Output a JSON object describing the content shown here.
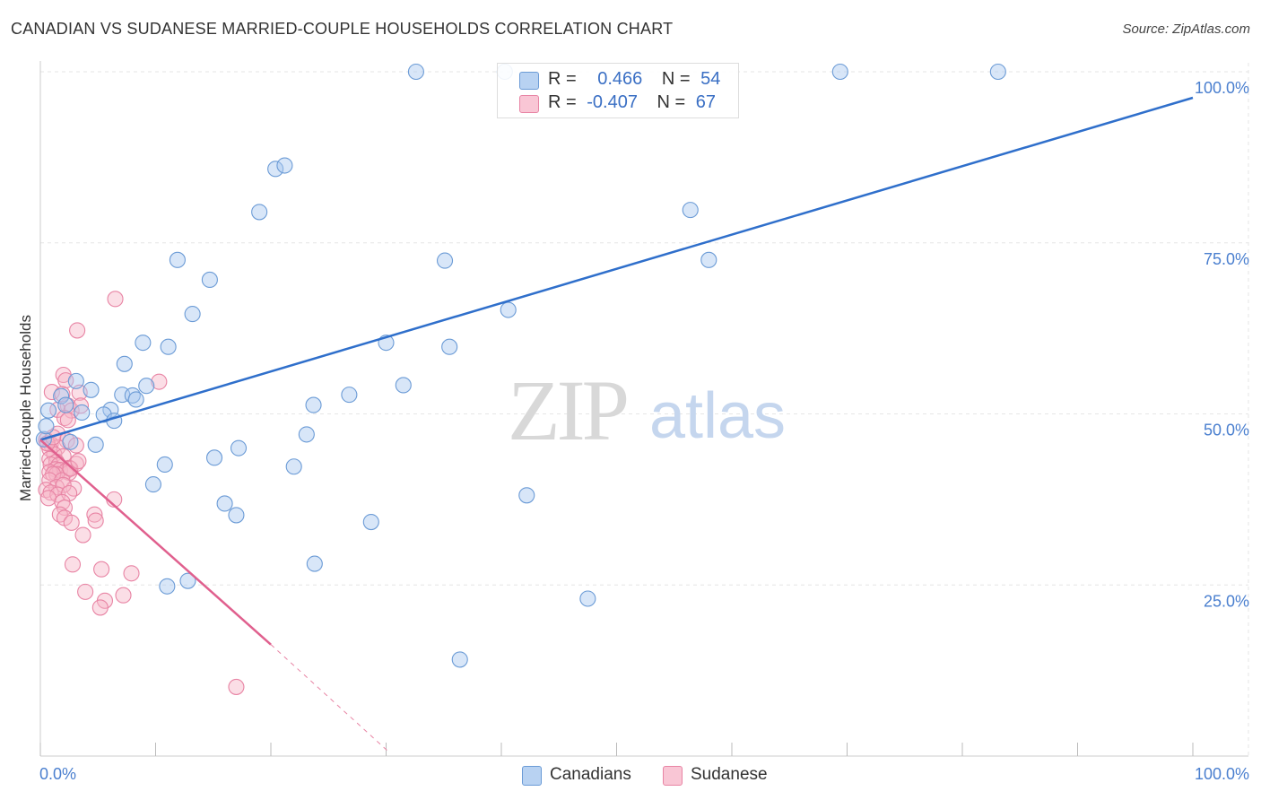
{
  "header": {
    "title": "CANADIAN VS SUDANESE MARRIED-COUPLE HOUSEHOLDS CORRELATION CHART",
    "source": "Source: ZipAtlas.com"
  },
  "watermark": {
    "zip": "ZIP",
    "atlas": "atlas"
  },
  "legend": {
    "canadians": {
      "r_label": "R =",
      "r_value": "0.466",
      "n_label": "N =",
      "n_value": "54"
    },
    "sudanese": {
      "r_label": "R =",
      "r_value": "-0.407",
      "n_label": "N =",
      "n_value": "67"
    }
  },
  "bottom_legend": {
    "canadians": "Canadians",
    "sudanese": "Sudanese"
  },
  "colors": {
    "canadians_fill": "#a9c8ef",
    "canadians_stroke": "#6b9bd6",
    "canadians_line": "#2f6fcb",
    "sudanese_fill": "#f7b6c8",
    "sudanese_stroke": "#e884a4",
    "sudanese_line": "#e0608e",
    "axis_label": "#4a7fcf",
    "grid": "#e6e6e6"
  },
  "chart_data": {
    "type": "scatter",
    "title": "CANADIAN VS SUDANESE MARRIED-COUPLE HOUSEHOLDS CORRELATION CHART",
    "xlabel": "",
    "ylabel": "Married-couple Households",
    "xlim": [
      0,
      100
    ],
    "ylim": [
      0,
      103
    ],
    "x_tick_labels": [
      "0.0%",
      "100.0%"
    ],
    "y_ticks": [
      25,
      50,
      75,
      100
    ],
    "y_tick_labels": [
      "25.0%",
      "50.0%",
      "75.0%",
      "100.0%"
    ],
    "series": [
      {
        "name": "Canadians",
        "R": 0.466,
        "N": 54,
        "trend": {
          "x": [
            0,
            100
          ],
          "y": [
            46.2,
            96.2
          ]
        },
        "points": [
          [
            32.6,
            100
          ],
          [
            40.3,
            100
          ],
          [
            69.4,
            100
          ],
          [
            83.1,
            100
          ],
          [
            20.4,
            85.8
          ],
          [
            21.2,
            86.3
          ],
          [
            19,
            79.5
          ],
          [
            56.4,
            79.8
          ],
          [
            11.9,
            72.5
          ],
          [
            58,
            72.5
          ],
          [
            35.1,
            72.4
          ],
          [
            14.7,
            69.6
          ],
          [
            13.2,
            64.6
          ],
          [
            40.6,
            65.2
          ],
          [
            8.9,
            60.4
          ],
          [
            11.1,
            59.8
          ],
          [
            30,
            60.4
          ],
          [
            35.5,
            59.8
          ],
          [
            7.3,
            57.3
          ],
          [
            3.1,
            54.8
          ],
          [
            0.7,
            50.5
          ],
          [
            1.8,
            52.6
          ],
          [
            2.2,
            51.3
          ],
          [
            4.4,
            53.5
          ],
          [
            3.6,
            50.2
          ],
          [
            6.1,
            50.6
          ],
          [
            5.5,
            49.9
          ],
          [
            6.4,
            49
          ],
          [
            7.1,
            52.8
          ],
          [
            8,
            52.7
          ],
          [
            8.3,
            52.1
          ],
          [
            9.2,
            54.1
          ],
          [
            15.1,
            43.6
          ],
          [
            17.2,
            45
          ],
          [
            22,
            42.3
          ],
          [
            23.1,
            47
          ],
          [
            23.7,
            51.3
          ],
          [
            26.8,
            52.8
          ],
          [
            31.5,
            54.2
          ],
          [
            4.8,
            45.5
          ],
          [
            2.6,
            45.9
          ],
          [
            0.3,
            46.3
          ],
          [
            10.8,
            42.6
          ],
          [
            9.8,
            39.7
          ],
          [
            16,
            36.9
          ],
          [
            17,
            35.2
          ],
          [
            28.7,
            34.2
          ],
          [
            42.2,
            38.1
          ],
          [
            11,
            24.8
          ],
          [
            12.8,
            25.6
          ],
          [
            23.8,
            28.1
          ],
          [
            47.5,
            23
          ],
          [
            36.4,
            14.1
          ],
          [
            0.5,
            48.2
          ]
        ]
      },
      {
        "name": "Sudanese",
        "R": -0.407,
        "N": 67,
        "trend": {
          "x": [
            0,
            20
          ],
          "y": [
            46.2,
            16.3
          ]
        },
        "trend_dashed": {
          "x": [
            20,
            30.3
          ],
          "y": [
            16.3,
            0.5
          ]
        },
        "points": [
          [
            6.5,
            66.8
          ],
          [
            3.2,
            62.2
          ],
          [
            2,
            55.7
          ],
          [
            10.3,
            54.7
          ],
          [
            2.2,
            54.9
          ],
          [
            1,
            53.2
          ],
          [
            3.4,
            53.1
          ],
          [
            2.4,
            51.2
          ],
          [
            1.5,
            50.6
          ],
          [
            2.7,
            50.5
          ],
          [
            3.5,
            51.2
          ],
          [
            2.1,
            49.4
          ],
          [
            2.4,
            49.1
          ],
          [
            1.5,
            47.1
          ],
          [
            0.5,
            46.2
          ],
          [
            2.3,
            46.1
          ],
          [
            0.9,
            45.6
          ],
          [
            3.1,
            45.4
          ],
          [
            1.5,
            45.1
          ],
          [
            0.8,
            44.9
          ],
          [
            1.2,
            44.1
          ],
          [
            2,
            43.8
          ],
          [
            0.8,
            43.4
          ],
          [
            1.4,
            43
          ],
          [
            3.1,
            42.7
          ],
          [
            0.9,
            42.6
          ],
          [
            1.6,
            42.5
          ],
          [
            2.5,
            42.1
          ],
          [
            1.3,
            41.9
          ],
          [
            1.7,
            41.8
          ],
          [
            2.2,
            41.6
          ],
          [
            0.8,
            41.5
          ],
          [
            2.5,
            41.4
          ],
          [
            1.4,
            41.2
          ],
          [
            1.1,
            41.2
          ],
          [
            0.8,
            40.3
          ],
          [
            1.9,
            40.3
          ],
          [
            2.9,
            39.1
          ],
          [
            1.4,
            39.3
          ],
          [
            2,
            39.6
          ],
          [
            0.5,
            38.9
          ],
          [
            0.9,
            38.5
          ],
          [
            1.5,
            38.2
          ],
          [
            0.7,
            37.7
          ],
          [
            2.5,
            38.4
          ],
          [
            6.4,
            37.5
          ],
          [
            1.9,
            37.1
          ],
          [
            2.1,
            36.3
          ],
          [
            4.7,
            35.3
          ],
          [
            1.7,
            35.3
          ],
          [
            2.1,
            34.8
          ],
          [
            4.8,
            34.4
          ],
          [
            2.7,
            34.1
          ],
          [
            3.7,
            32.3
          ],
          [
            2.8,
            28
          ],
          [
            5.3,
            27.3
          ],
          [
            7.9,
            26.7
          ],
          [
            3.9,
            24
          ],
          [
            7.2,
            23.5
          ],
          [
            5.6,
            22.7
          ],
          [
            5.2,
            21.7
          ],
          [
            17,
            10.1
          ],
          [
            0.6,
            45.7
          ],
          [
            1.1,
            46.6
          ],
          [
            2.6,
            42
          ],
          [
            3.3,
            43.1
          ],
          [
            1.9,
            52.9
          ]
        ]
      }
    ]
  }
}
